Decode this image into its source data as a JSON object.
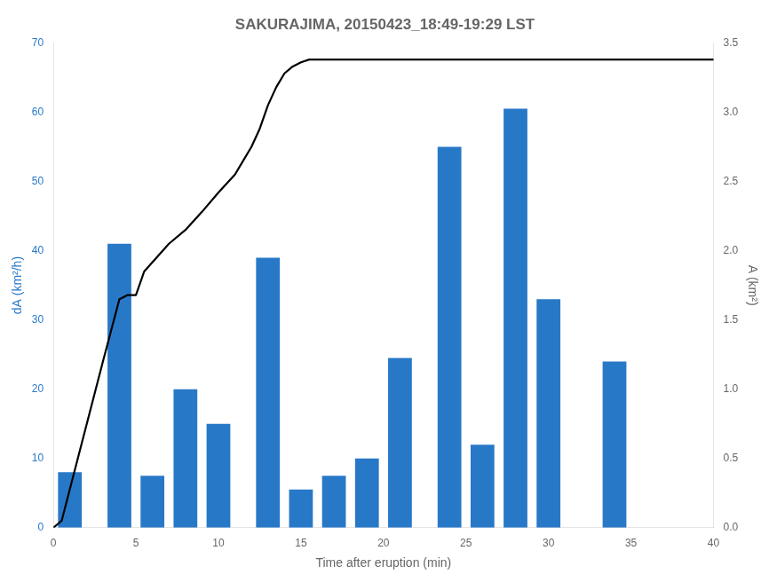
{
  "chart_data": {
    "type": "bar",
    "title": "SAKURAJIMA, 20150423_18:49-19:29 LST",
    "xlabel": "Time after eruption (min)",
    "ylabel": "dA (km²/h)",
    "y2label": "A (km²)",
    "series": [
      {
        "type": "bar",
        "color": "#2878c8",
        "x": [
          1,
          4,
          6,
          8,
          10,
          13,
          15,
          17,
          19,
          21,
          24,
          26,
          28,
          30,
          34
        ],
        "values": [
          8.0,
          41.0,
          7.5,
          20.0,
          15.0,
          39.0,
          5.5,
          7.5,
          10.0,
          24.5,
          55.0,
          12.0,
          60.5,
          33.0,
          24.0
        ]
      },
      {
        "type": "line",
        "axis": "y2",
        "color": "#000000",
        "x": [
          0.0,
          0.5,
          3.0,
          4.0,
          4.5,
          5.0,
          5.5,
          7.0,
          8.0,
          9.0,
          10.0,
          11.0,
          11.5,
          12.0,
          12.5,
          13.0,
          13.5,
          14.0,
          14.5,
          15.0,
          15.5,
          16.0,
          17.0,
          40.0
        ],
        "values": [
          0.0,
          0.05,
          1.2,
          1.65,
          1.68,
          1.68,
          1.85,
          2.05,
          2.15,
          2.28,
          2.42,
          2.55,
          2.65,
          2.75,
          2.88,
          3.05,
          3.18,
          3.28,
          3.33,
          3.36,
          3.38,
          3.38,
          3.38,
          3.38
        ]
      }
    ],
    "xlim": [
      0,
      40
    ],
    "xticks": [
      0,
      5,
      10,
      15,
      20,
      25,
      30,
      35,
      40
    ],
    "ylim": [
      0,
      70
    ],
    "yticks": [
      0,
      10,
      20,
      30,
      40,
      50,
      60,
      70
    ],
    "y2lim": [
      0,
      3.5
    ],
    "y2ticks": [
      {
        "value": 0,
        "label": "0.0"
      },
      0.5,
      {
        "value": 1,
        "label": "1.0"
      },
      1.5,
      {
        "value": 2,
        "label": "2.0"
      },
      2.5,
      {
        "value": 3,
        "label": "3.0"
      },
      3.5
    ],
    "grid": false
  }
}
